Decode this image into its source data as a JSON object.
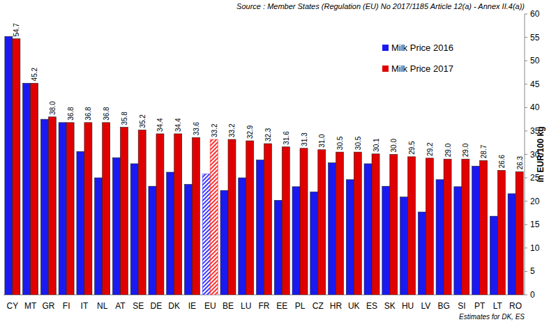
{
  "chart_data": {
    "type": "bar",
    "annotations": [
      {
        "text": "Source : Member States (Regulation (EU) No 2017/1185 Article 12(a) - Annex II.4(a))"
      },
      {
        "text": "Estimates for DK, ES"
      }
    ],
    "y_label": "in EUR/100 kg",
    "categories": [
      "CY",
      "MT",
      "GR",
      "FI",
      "IT",
      "NL",
      "AT",
      "SE",
      "DE",
      "DK",
      "IE",
      "EU",
      "BE",
      "LU",
      "FR",
      "EE",
      "PL",
      "CZ",
      "HR",
      "UK",
      "ES",
      "SK",
      "HU",
      "LV",
      "BG",
      "SI",
      "PT",
      "LT",
      "RO"
    ],
    "series": [
      {
        "name": "Milk Price 2016",
        "color": "#1a1af0",
        "colors": [
          "#1a1af0",
          "#1a1af0",
          "#1a1af0",
          "#1a1af0",
          "#1a1af0",
          "#1a1af0",
          "#1a1af0",
          "#1a1af0",
          "#1a1af0",
          "#1a1af0",
          "#1a1af0",
          "#3a3aff",
          "#1a1af0",
          "#1a1af0",
          "#1a1af0",
          "#1a1af0",
          "#1a1af0",
          "#1a1af0",
          "#1a1af0",
          "#1a1af0",
          "#1a1af0",
          "#1a1af0",
          "#1a1af0",
          "#1a1af0",
          "#1a1af0",
          "#1a1af0",
          "#1a1af0",
          "#1a1af0",
          "#1a1af0"
        ],
        "values": [
          55.2,
          45.2,
          37.5,
          36.8,
          30.6,
          25.0,
          29.3,
          28.0,
          23.2,
          26.2,
          23.6,
          25.8,
          22.3,
          25.0,
          28.8,
          20.2,
          23.1,
          22.0,
          28.2,
          24.6,
          28.0,
          23.2,
          20.9,
          17.7,
          24.6,
          23.1,
          27.5,
          16.8,
          21.6
        ]
      },
      {
        "name": "Milk Price 2017",
        "color": "#e00000",
        "colors": [
          "#e00000",
          "#e00000",
          "#e00000",
          "#e00000",
          "#e00000",
          "#e00000",
          "#e00000",
          "#e00000",
          "#e00000",
          "#e00000",
          "#e00000",
          "#ff3030",
          "#e00000",
          "#e00000",
          "#e00000",
          "#e00000",
          "#e00000",
          "#e00000",
          "#e00000",
          "#e00000",
          "#e00000",
          "#e00000",
          "#e00000",
          "#e00000",
          "#e00000",
          "#e00000",
          "#e00000",
          "#e00000",
          "#e00000"
        ],
        "data_labels": true,
        "values": [
          54.7,
          45.2,
          38.0,
          36.8,
          36.8,
          36.8,
          35.8,
          35.2,
          34.4,
          34.4,
          33.6,
          33.2,
          33.2,
          32.9,
          32.3,
          31.6,
          31.3,
          31.0,
          30.5,
          30.5,
          30.1,
          30.0,
          29.5,
          29.2,
          29.0,
          29.0,
          28.7,
          26.6,
          26.3
        ],
        "value_labels": [
          "54.7",
          "45.2",
          "38.0",
          "36.8",
          "36.8",
          "36.8",
          "35.8",
          "35.2",
          "34.4",
          "34.4",
          "33.6",
          "33.2",
          "33.2",
          "32.9",
          "32.3",
          "31.6",
          "31.3",
          "31.0",
          "30.5",
          "30.5",
          "30.1",
          "30.0",
          "29.5",
          "29.2",
          "29.0",
          "29.0",
          "28.7",
          "26.6",
          "26.3"
        ]
      }
    ],
    "ylim": [
      0,
      60
    ],
    "yticks": [
      0,
      5,
      10,
      15,
      20,
      25,
      30,
      35,
      40,
      45,
      50,
      55,
      60
    ],
    "grid": false,
    "legend": "upper right"
  }
}
